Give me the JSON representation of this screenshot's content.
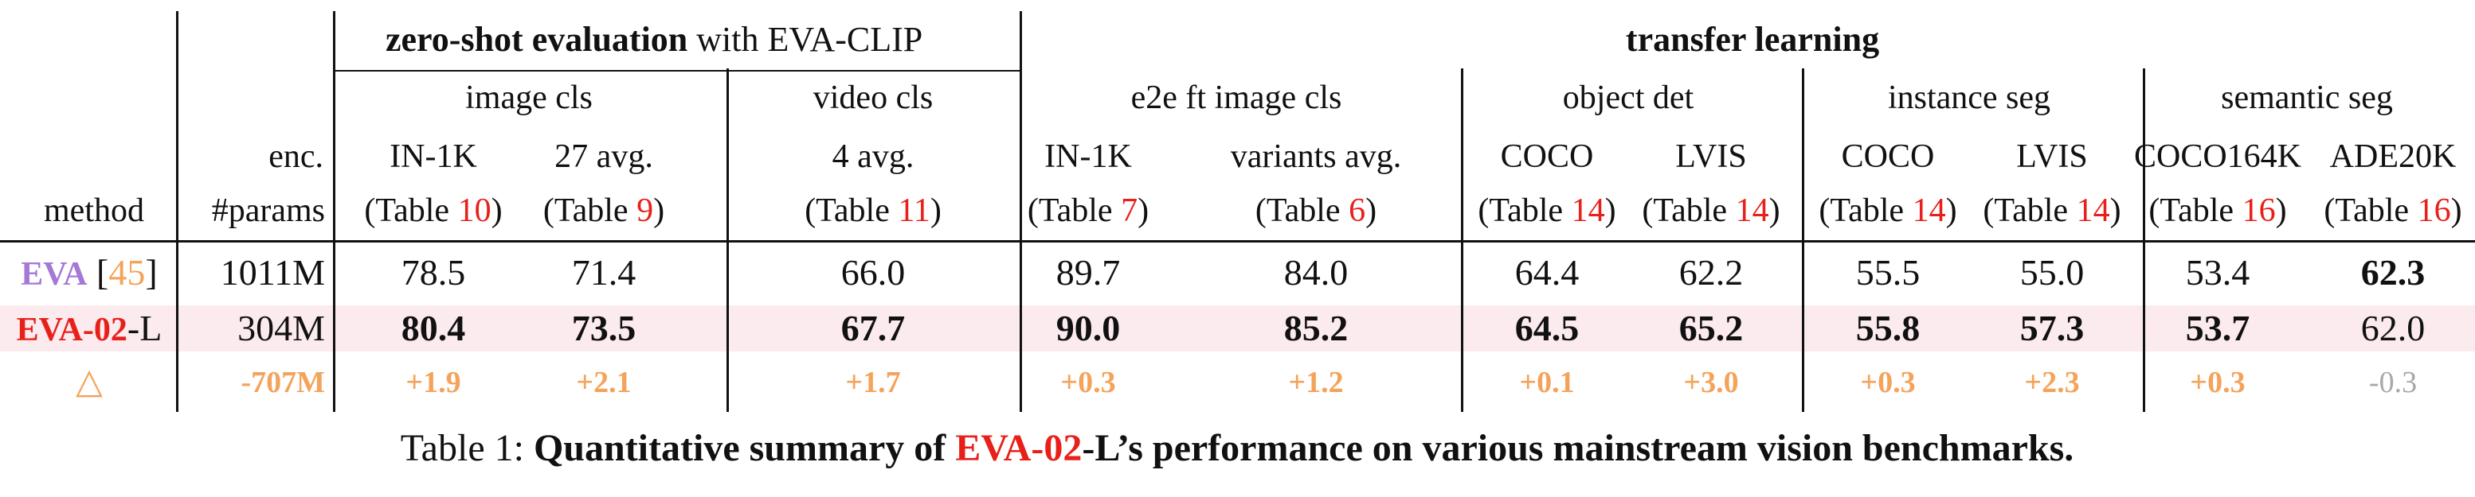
{
  "header": {
    "zero_shot_title_bold": "zero-shot evaluation",
    "zero_shot_title_rest": " with EVA-CLIP",
    "transfer_title": "transfer learning",
    "groups": [
      "image cls",
      "video cls",
      "e2e ft image cls",
      "object det",
      "instance seg",
      "semantic seg"
    ],
    "enc_label": "enc.",
    "method_label": "method",
    "params_label": "#params",
    "benchmarks": [
      "IN-1K",
      "27 avg.",
      "4 avg.",
      "IN-1K",
      "variants avg.",
      "COCO",
      "LVIS",
      "COCO",
      "LVIS",
      "COCO164K",
      "ADE20K"
    ],
    "table_word": "(Table ",
    "table_close": ")",
    "table_refs": [
      "10",
      "9",
      "11",
      "7",
      "6",
      "14",
      "14",
      "14",
      "14",
      "16",
      "16"
    ]
  },
  "rows": {
    "eva": {
      "name": "EVA",
      "ref_open": " [",
      "ref": "45",
      "ref_close": "]",
      "params": "1011M",
      "values": [
        "78.5",
        "71.4",
        "66.0",
        "89.7",
        "84.0",
        "64.4",
        "62.2",
        "55.5",
        "55.0",
        "53.4",
        "62.3"
      ]
    },
    "eva02": {
      "name_red": "EVA-02",
      "name_suffix": "-L",
      "params": "304M",
      "values": [
        "80.4",
        "73.5",
        "67.7",
        "90.0",
        "85.2",
        "64.5",
        "65.2",
        "55.8",
        "57.3",
        "53.7",
        "62.0"
      ]
    },
    "delta": {
      "symbol": "△",
      "params": "-707M",
      "values": [
        "+1.9",
        "+2.1",
        "+1.7",
        "+0.3",
        "+1.2",
        "+0.1",
        "+3.0",
        "+0.3",
        "+2.3",
        "+0.3",
        "-0.3"
      ]
    }
  },
  "caption": {
    "prefix": "Table 1: ",
    "bold_a": "Quantitative summary of ",
    "red": "EVA-02",
    "bold_b": "-L’s performance on various mainstream vision benchmarks."
  },
  "colors": {
    "accent_red": "#e8201a",
    "delta_orange": "#f4a35a",
    "eva_purple": "#a678d6",
    "highlight_band": "#fbeaee",
    "negative_gray": "#a8a8a8"
  }
}
